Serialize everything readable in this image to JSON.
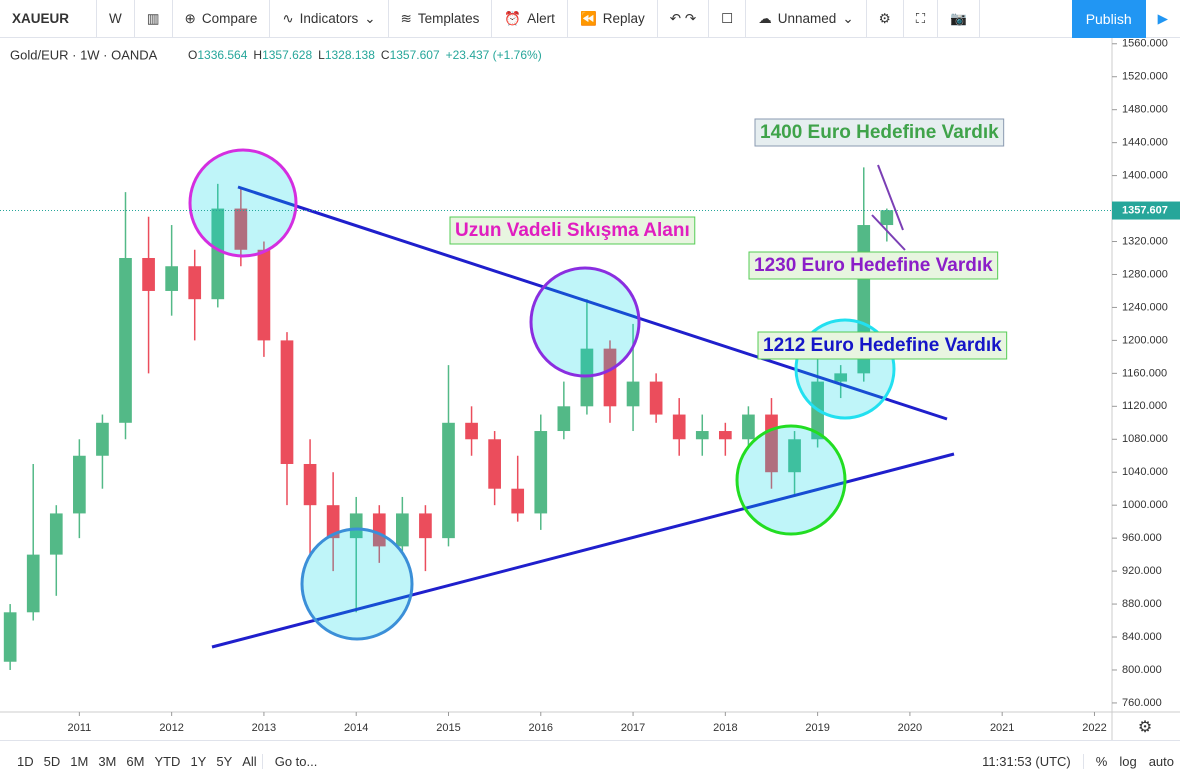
{
  "toolbar": {
    "symbol": "XAUEUR",
    "interval": "W",
    "buttons": [
      "Compare",
      "Indicators",
      "Templates",
      "Alert",
      "Replay"
    ],
    "layout_name": "Unnamed",
    "publish": "Publish"
  },
  "chart_data": {
    "type": "candlestick",
    "title": "Gold/EUR · 1W · OANDA",
    "ohlc": [
      {
        "label": "O",
        "value": 1336.564
      },
      {
        "label": "H",
        "value": 1357.628
      },
      {
        "label": "L",
        "value": 1328.138
      },
      {
        "label": "C",
        "value": 1357.607
      }
    ],
    "change": "+23.437 (+1.76%)",
    "x": [
      2010.25,
      2010.5,
      2010.75,
      2011.0,
      2011.25,
      2011.5,
      2011.75,
      2012.0,
      2012.25,
      2012.5,
      2012.75,
      2013.0,
      2013.25,
      2013.5,
      2013.75,
      2014.0,
      2014.25,
      2014.5,
      2014.75,
      2015.0,
      2015.25,
      2015.5,
      2015.75,
      2016.0,
      2016.25,
      2016.5,
      2016.75,
      2017.0,
      2017.25,
      2017.5,
      2017.75,
      2018.0,
      2018.25,
      2018.5,
      2018.75,
      2019.0,
      2019.25,
      2019.5,
      2019.75
    ],
    "open": [
      810,
      870,
      940,
      990,
      1060,
      1100,
      1300,
      1260,
      1290,
      1250,
      1360,
      1310,
      1200,
      1050,
      1000,
      960,
      990,
      950,
      990,
      960,
      1100,
      1080,
      1020,
      990,
      1090,
      1120,
      1190,
      1120,
      1150,
      1110,
      1080,
      1090,
      1080,
      1110,
      1040,
      1080,
      1150,
      1160,
      1340
    ],
    "high": [
      880,
      1050,
      1000,
      1080,
      1110,
      1380,
      1350,
      1340,
      1310,
      1390,
      1385,
      1320,
      1210,
      1080,
      1040,
      1010,
      1000,
      1010,
      1000,
      1170,
      1120,
      1090,
      1060,
      1110,
      1150,
      1250,
      1200,
      1220,
      1160,
      1130,
      1110,
      1100,
      1120,
      1130,
      1090,
      1180,
      1170,
      1410,
      1360
    ],
    "low": [
      800,
      860,
      890,
      960,
      1020,
      1080,
      1160,
      1230,
      1200,
      1240,
      1290,
      1180,
      1000,
      940,
      920,
      870,
      930,
      940,
      920,
      950,
      1060,
      1000,
      980,
      970,
      1080,
      1110,
      1100,
      1090,
      1100,
      1060,
      1060,
      1060,
      1070,
      1020,
      1010,
      1070,
      1130,
      1150,
      1320
    ],
    "close": [
      870,
      940,
      990,
      1060,
      1100,
      1300,
      1260,
      1290,
      1250,
      1360,
      1310,
      1200,
      1050,
      1000,
      960,
      990,
      950,
      990,
      960,
      1100,
      1080,
      1020,
      990,
      1090,
      1120,
      1190,
      1120,
      1150,
      1110,
      1080,
      1090,
      1080,
      1110,
      1040,
      1080,
      1150,
      1160,
      1340,
      1358
    ],
    "up_color": "#53b987",
    "down_color": "#eb4d5c",
    "last_price": 1357.607,
    "xlim": [
      2010.14,
      2022.19
    ],
    "xticks": [
      2011,
      2012,
      2013,
      2014,
      2015,
      2016,
      2017,
      2018,
      2019,
      2020,
      2021,
      2022
    ],
    "ylim": [
      749,
      1567
    ],
    "yticks": [
      {
        "value": 760,
        "label": "760.000"
      },
      {
        "value": 800,
        "label": "800.000"
      },
      {
        "value": 840,
        "label": "840.000"
      },
      {
        "value": 880,
        "label": "880.000"
      },
      {
        "value": 920,
        "label": "920.000"
      },
      {
        "value": 960,
        "label": "960.000"
      },
      {
        "value": 1000,
        "label": "1000.000"
      },
      {
        "value": 1040,
        "label": "1040.000"
      },
      {
        "value": 1080,
        "label": "1080.000"
      },
      {
        "value": 1120,
        "label": "1120.000"
      },
      {
        "value": 1160,
        "label": "1160.000"
      },
      {
        "value": 1200,
        "label": "1200.000"
      },
      {
        "value": 1240,
        "label": "1240.000"
      },
      {
        "value": 1280,
        "label": "1280.000"
      },
      {
        "value": 1320,
        "label": "1320.000"
      },
      {
        "value": 1360,
        "label": "1360.000"
      },
      {
        "value": 1400,
        "label": "1400.000"
      },
      {
        "value": 1440,
        "label": "1440.000"
      },
      {
        "value": 1480,
        "label": "1480.000"
      },
      {
        "value": 1520,
        "label": "1520.000"
      },
      {
        "value": 1560,
        "label": "1560.000"
      }
    ],
    "grid": false,
    "annotations": [
      "1400 Euro Hedefine Vardık",
      "Uzun Vadeli Sıkışma Alanı",
      "1230 Euro Hedefine Vardık",
      "1212 Euro Hedefine Vardık"
    ]
  },
  "bottom_bar": {
    "ranges": [
      "1D",
      "5D",
      "1M",
      "3M",
      "6M",
      "YTD",
      "1Y",
      "5Y",
      "All"
    ],
    "goto": "Go to...",
    "time": "11:31:53 (UTC)",
    "options": [
      "%",
      "log",
      "auto"
    ]
  }
}
